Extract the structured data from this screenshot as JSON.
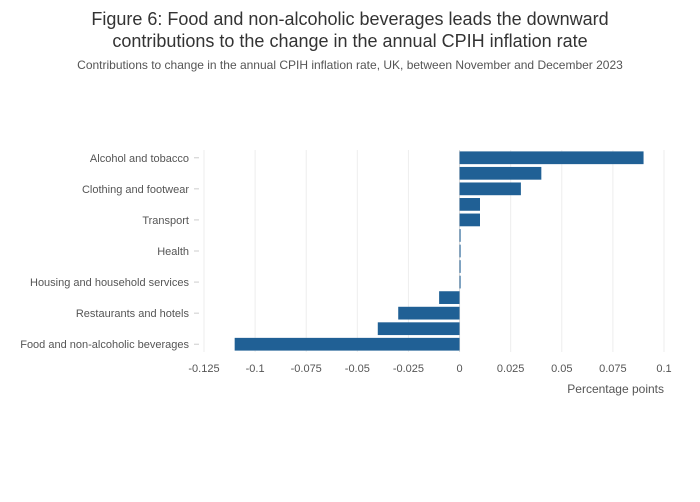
{
  "title_line1": "Figure 6: Food and non-alcoholic beverages leads the downward",
  "title_line2": "contributions to the change in the annual CPIH inflation rate",
  "subtitle": "Contributions to change in the annual CPIH inflation rate, UK, between November and December 2023",
  "chart_data": {
    "type": "bar",
    "orientation": "horizontal",
    "categories": [
      "Alcohol and tobacco",
      "",
      "Clothing and footwear",
      "",
      "Transport",
      "",
      "Health",
      "",
      "Housing and household services",
      "",
      "Restaurants and hotels",
      "",
      "Food and non-alcoholic beverages"
    ],
    "values": [
      0.09,
      0.04,
      0.03,
      0.01,
      0.01,
      0.0005,
      0.0005,
      0.0005,
      0.0005,
      -0.01,
      -0.03,
      -0.04,
      -0.11
    ],
    "xlabel": "Percentage points",
    "ylabel": "",
    "xlim": [
      -0.125,
      0.1
    ],
    "xticks": [
      -0.125,
      -0.1,
      -0.075,
      -0.05,
      -0.025,
      0,
      0.025,
      0.05,
      0.075,
      0.1
    ],
    "xtick_labels": [
      "-0.125",
      "-0.1",
      "-0.075",
      "-0.05",
      "-0.025",
      "0",
      "0.025",
      "0.05",
      "0.075",
      "0.1"
    ],
    "bar_color": "#206095",
    "grid": true,
    "legend": false
  }
}
